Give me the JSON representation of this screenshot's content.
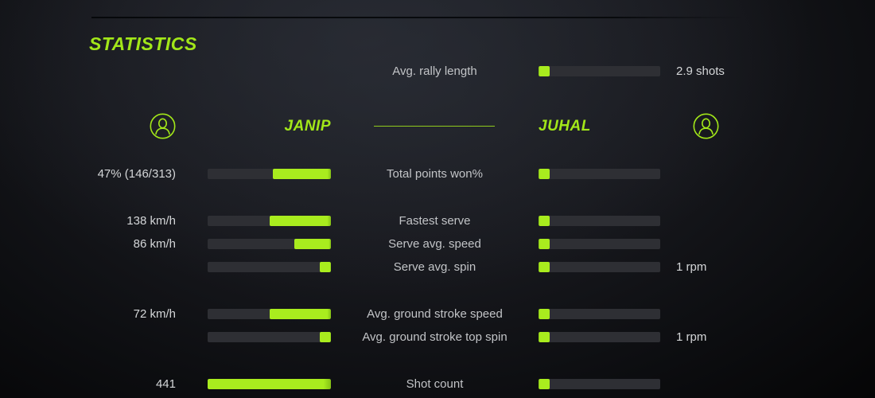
{
  "accent_color": "#a2e719",
  "bar_track_color": "#2e2f34",
  "bar_fill_color": "#a9ec1e",
  "title": "STATISTICS",
  "players": {
    "left": {
      "name": "JANIP"
    },
    "right": {
      "name": "JUHAL"
    }
  },
  "stats": [
    {
      "label": "Avg. rally length",
      "left_value": "",
      "left_pct": null,
      "right_pct": 9,
      "right_value": "2.9 shots"
    },
    {
      "label": "Total points won%",
      "left_value": "47% (146/313)",
      "left_pct": 47,
      "right_pct": 9,
      "right_value": ""
    },
    {
      "label": "Fastest serve",
      "left_value": "138 km/h",
      "left_pct": 50,
      "right_pct": 9,
      "right_value": ""
    },
    {
      "label": "Serve avg. speed",
      "left_value": "86 km/h",
      "left_pct": 30,
      "right_pct": 9,
      "right_value": ""
    },
    {
      "label": "Serve avg. spin",
      "left_value": "",
      "left_pct": 9,
      "right_pct": 9,
      "right_value": "1 rpm"
    },
    {
      "label": "Avg. ground stroke speed",
      "left_value": "72 km/h",
      "left_pct": 50,
      "right_pct": 9,
      "right_value": ""
    },
    {
      "label": "Avg. ground stroke top spin",
      "left_value": "",
      "left_pct": 9,
      "right_pct": 9,
      "right_value": "1 rpm"
    },
    {
      "label": "Shot count",
      "left_value": "441",
      "left_pct": 100,
      "right_pct": 9,
      "right_value": ""
    }
  ]
}
